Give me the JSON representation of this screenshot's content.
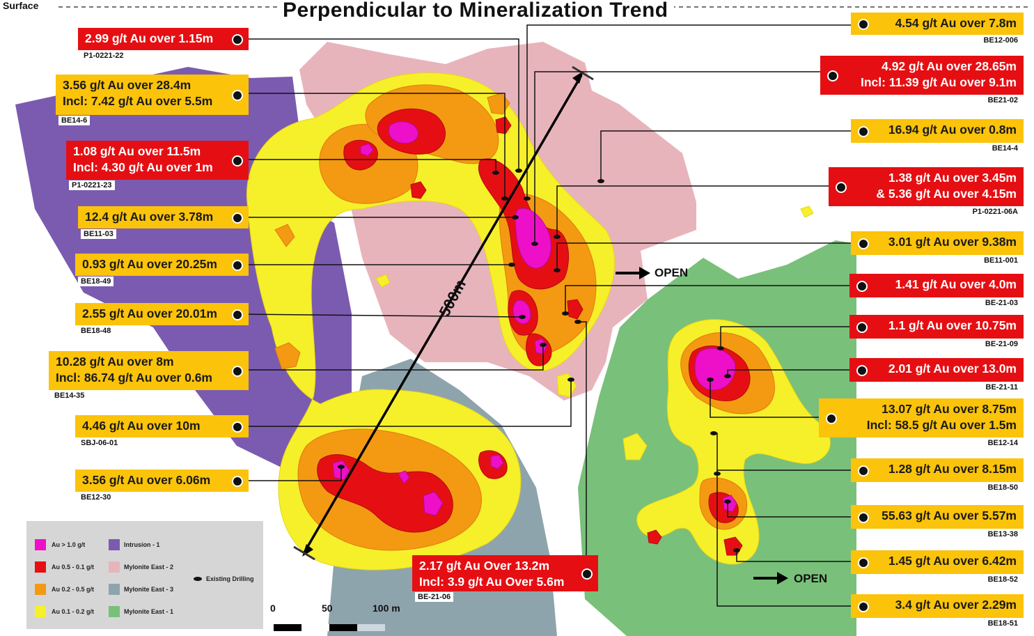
{
  "header": {
    "surface_label": "Surface",
    "title": "Perpendicular to Mineralization Trend"
  },
  "annotations": {
    "length_label": "500m",
    "open_label_1": "OPEN",
    "open_label_2": "OPEN"
  },
  "callouts": [
    {
      "id": "p1-0221-22",
      "lines": [
        "2.99 g/t Au over 1.15m"
      ],
      "hole": "P1-0221-22",
      "color": "red",
      "side": "left"
    },
    {
      "id": "be14-6",
      "lines": [
        "3.56 g/t Au over 28.4m",
        "Incl: 7.42 g/t Au over 5.5m"
      ],
      "hole": "BE14-6",
      "color": "yellow",
      "side": "left"
    },
    {
      "id": "p1-0221-23",
      "lines": [
        "1.08 g/t Au over 11.5m",
        "Incl: 4.30 g/t Au over 1m"
      ],
      "hole": "P1-0221-23",
      "color": "red",
      "side": "left"
    },
    {
      "id": "be11-03",
      "lines": [
        "12.4 g/t Au over 3.78m"
      ],
      "hole": "BE11-03",
      "color": "yellow",
      "side": "left"
    },
    {
      "id": "be18-49",
      "lines": [
        "0.93 g/t Au over 20.25m"
      ],
      "hole": "BE18-49",
      "color": "yellow",
      "side": "left"
    },
    {
      "id": "be18-48",
      "lines": [
        "2.55 g/t Au over 20.01m"
      ],
      "hole": "BE18-48",
      "color": "yellow",
      "side": "left"
    },
    {
      "id": "be14-35",
      "lines": [
        "10.28 g/t Au over 8m",
        "Incl: 86.74 g/t Au over 0.6m"
      ],
      "hole": "BE14-35",
      "color": "yellow",
      "side": "left"
    },
    {
      "id": "sbj-06-01",
      "lines": [
        "4.46 g/t Au over 10m"
      ],
      "hole": "SBJ-06-01",
      "color": "yellow",
      "side": "left"
    },
    {
      "id": "be12-30",
      "lines": [
        "3.56 g/t Au over 6.06m"
      ],
      "hole": "BE12-30",
      "color": "yellow",
      "side": "left"
    },
    {
      "id": "be-21-06",
      "lines": [
        "2.17 g/t Au Over 13.2m",
        "Incl: 3.9 g/t Au Over 5.6m"
      ],
      "hole": "BE-21-06",
      "color": "red",
      "side": "left"
    },
    {
      "id": "be12-006",
      "lines": [
        "4.54 g/t Au over 7.8m"
      ],
      "hole": "BE12-006",
      "color": "yellow",
      "side": "right"
    },
    {
      "id": "be21-02",
      "lines": [
        "4.92 g/t Au over 28.65m",
        "Incl: 11.39 g/t Au over 9.1m"
      ],
      "hole": "BE21-02",
      "color": "red",
      "side": "right"
    },
    {
      "id": "be14-4",
      "lines": [
        "16.94 g/t Au over 0.8m"
      ],
      "hole": "BE14-4",
      "color": "yellow",
      "side": "right"
    },
    {
      "id": "p1-0221-06a",
      "lines": [
        "1.38 g/t Au over 3.45m",
        "& 5.36 g/t Au over 4.15m"
      ],
      "hole": "P1-0221-06A",
      "color": "red",
      "side": "right"
    },
    {
      "id": "be11-001",
      "lines": [
        "3.01 g/t Au over 9.38m"
      ],
      "hole": "BE11-001",
      "color": "yellow",
      "side": "right"
    },
    {
      "id": "be-21-03",
      "lines": [
        "1.41 g/t Au over 4.0m"
      ],
      "hole": "BE-21-03",
      "color": "red",
      "side": "right"
    },
    {
      "id": "be-21-09",
      "lines": [
        "1.1 g/t Au over 10.75m"
      ],
      "hole": "BE-21-09",
      "color": "red",
      "side": "right"
    },
    {
      "id": "be-21-11",
      "lines": [
        "2.01 g/t Au over 13.0m"
      ],
      "hole": "BE-21-11",
      "color": "red",
      "side": "right"
    },
    {
      "id": "be12-14",
      "lines": [
        "13.07 g/t Au over 8.75m",
        "Incl: 58.5 g/t Au over 1.5m"
      ],
      "hole": "BE12-14",
      "color": "yellow",
      "side": "right"
    },
    {
      "id": "be18-50",
      "lines": [
        "1.28 g/t Au over 8.15m"
      ],
      "hole": "BE18-50",
      "color": "yellow",
      "side": "right"
    },
    {
      "id": "be13-38",
      "lines": [
        "55.63 g/t Au over 5.57m"
      ],
      "hole": "BE13-38",
      "color": "yellow",
      "side": "right"
    },
    {
      "id": "be18-52",
      "lines": [
        "1.45 g/t Au over 6.42m"
      ],
      "hole": "BE18-52",
      "color": "yellow",
      "side": "right"
    },
    {
      "id": "be18-51",
      "lines": [
        "3.4 g/t Au over 2.29m"
      ],
      "hole": "BE18-51",
      "color": "yellow",
      "side": "right"
    }
  ],
  "legend": {
    "grades": [
      {
        "label": "Au > 1.0 g/t",
        "color": "#ee10c8"
      },
      {
        "label": "Au 0.5 - 0.1 g/t",
        "color": "#e50f13"
      },
      {
        "label": "Au 0.2 - 0.5 g/t",
        "color": "#f39a12"
      },
      {
        "label": "Au 0.1 - 0.2 g/t",
        "color": "#f6f02a"
      }
    ],
    "units": [
      {
        "label": "Intrusion - 1",
        "color": "#7b5bb0"
      },
      {
        "label": "Mylonite East - 2",
        "color": "#e8b4bc"
      },
      {
        "label": "Mylonite East - 3",
        "color": "#8ea4ac"
      },
      {
        "label": "Mylonite East - 1",
        "color": "#79c07a"
      }
    ],
    "drilling_label": "Existing Drilling"
  },
  "scale": {
    "labels": [
      "0",
      "50",
      "100 m"
    ]
  },
  "colors": {
    "red": "#e50f13",
    "yellow": "#fbc30a",
    "purple": "#7b5bb0",
    "pink": "#e8b4bc",
    "grey_blue": "#8ea4ac",
    "green": "#79c07a"
  }
}
